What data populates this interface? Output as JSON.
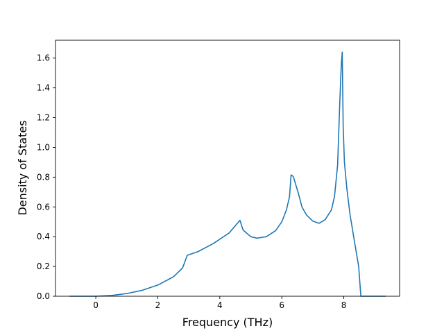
{
  "chart_data": {
    "type": "line",
    "title": "",
    "xlabel": "Frequency (THz)",
    "ylabel": "Density of States",
    "xlim": [
      -1.3,
      9.8
    ],
    "ylim": [
      0.0,
      1.72
    ],
    "xticks": [
      0,
      2,
      4,
      6,
      8
    ],
    "xtick_labels": [
      "0",
      "2",
      "4",
      "6",
      "8"
    ],
    "yticks": [
      0.0,
      0.2,
      0.4,
      0.6,
      0.8,
      1.0,
      1.2,
      1.4,
      1.6
    ],
    "ytick_labels": [
      "0.0",
      "0.2",
      "0.4",
      "0.6",
      "0.8",
      "1.0",
      "1.2",
      "1.4",
      "1.6"
    ],
    "grid": false,
    "legend": "none",
    "series": [
      {
        "color": "#1f77b4",
        "x": [
          -0.85,
          0.0,
          0.5,
          1.0,
          1.5,
          2.0,
          2.5,
          2.8,
          2.95,
          3.3,
          3.8,
          4.3,
          4.65,
          4.75,
          5.0,
          5.2,
          5.5,
          5.8,
          6.0,
          6.15,
          6.25,
          6.3,
          6.37,
          6.45,
          6.55,
          6.65,
          6.8,
          7.0,
          7.2,
          7.4,
          7.6,
          7.7,
          7.8,
          7.87,
          7.92,
          7.95,
          7.98,
          8.02,
          8.1,
          8.2,
          8.35,
          8.48,
          8.55,
          8.6,
          9.35
        ],
        "y": [
          0.0,
          0.0,
          0.005,
          0.018,
          0.04,
          0.075,
          0.13,
          0.19,
          0.275,
          0.3,
          0.355,
          0.425,
          0.51,
          0.445,
          0.4,
          0.39,
          0.4,
          0.44,
          0.5,
          0.58,
          0.67,
          0.815,
          0.805,
          0.75,
          0.68,
          0.6,
          0.545,
          0.505,
          0.49,
          0.515,
          0.58,
          0.67,
          0.88,
          1.3,
          1.56,
          1.64,
          1.14,
          0.9,
          0.72,
          0.55,
          0.36,
          0.2,
          0.0,
          0.0,
          0.0
        ]
      }
    ]
  }
}
